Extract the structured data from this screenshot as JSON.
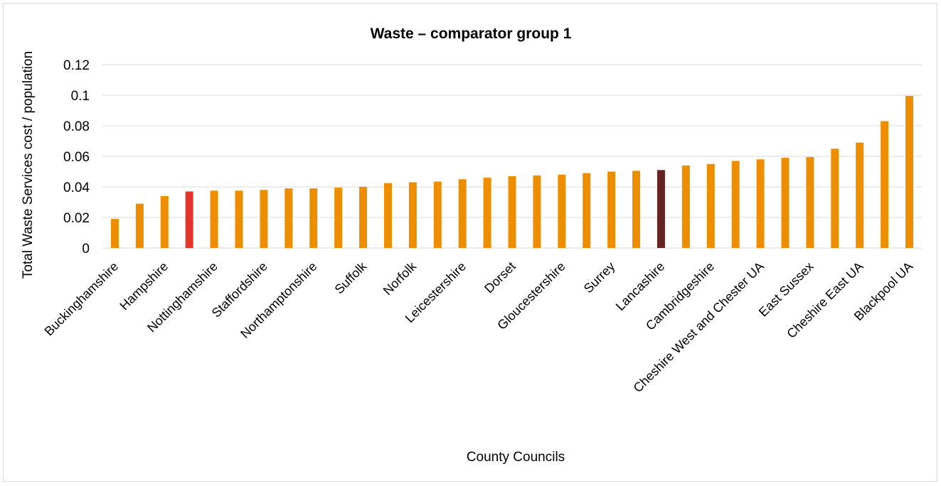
{
  "chart_data": {
    "type": "bar",
    "title": "Waste – comparator group 1",
    "xlabel": "County Councils",
    "ylabel": "Total Waste Services cost / population",
    "ylim": [
      0,
      0.12
    ],
    "yticks": [
      0,
      0.02,
      0.04,
      0.06,
      0.08,
      0.1,
      0.12
    ],
    "ytick_labels": [
      "0",
      "0.02",
      "0.04",
      "0.06",
      "0.08",
      "0.1",
      "0.12"
    ],
    "grid": true,
    "legend": "none",
    "categories": [
      "Buckinghamshire",
      "",
      "Hampshire",
      "",
      "Nottinghamshire",
      "",
      "Staffordshire",
      "",
      "Northamptonshire",
      "",
      "Suffolk",
      "",
      "Norfolk",
      "",
      "Leicestershire",
      "",
      "Dorset",
      "",
      "Gloucestershire",
      "",
      "Surrey",
      "",
      "Lancashire",
      "",
      "Cambridgeshire",
      "",
      "Cheshire West and Chester UA",
      "",
      "East Sussex",
      "",
      "Cheshire East UA",
      "",
      "Blackpool UA"
    ],
    "values": [
      0.019,
      0.029,
      0.034,
      0.037,
      0.0375,
      0.0375,
      0.038,
      0.039,
      0.039,
      0.0395,
      0.04,
      0.0425,
      0.043,
      0.0435,
      0.045,
      0.046,
      0.047,
      0.0475,
      0.048,
      0.049,
      0.05,
      0.0505,
      0.051,
      0.054,
      0.055,
      0.057,
      0.058,
      0.059,
      0.0595,
      0.065,
      0.069,
      0.083,
      0.0995
    ],
    "bar_colors": [
      "#ED8D00",
      "#ED8D00",
      "#ED8D00",
      "#E3352B",
      "#ED8D00",
      "#ED8D00",
      "#ED8D00",
      "#ED8D00",
      "#ED8D00",
      "#ED8D00",
      "#ED8D00",
      "#ED8D00",
      "#ED8D00",
      "#ED8D00",
      "#ED8D00",
      "#ED8D00",
      "#ED8D00",
      "#ED8D00",
      "#ED8D00",
      "#ED8D00",
      "#ED8D00",
      "#ED8D00",
      "#662323",
      "#ED8D00",
      "#ED8D00",
      "#ED8D00",
      "#ED8D00",
      "#ED8D00",
      "#ED8D00",
      "#ED8D00",
      "#ED8D00",
      "#ED8D00",
      "#ED8D00"
    ],
    "colors": {
      "bar": "#ED8D00",
      "highlight": "#E3352B",
      "dark_highlight": "#662323",
      "grid": "#d9d9d9"
    }
  }
}
